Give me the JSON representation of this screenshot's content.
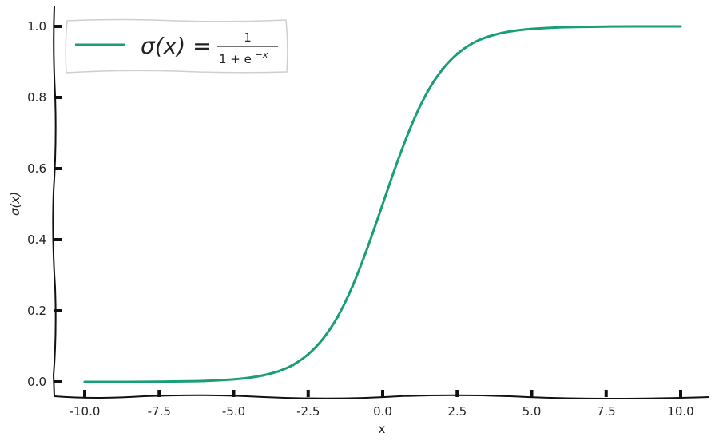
{
  "chart_data": {
    "type": "line",
    "title": "",
    "xlabel": "x",
    "ylabel": "σ(x)",
    "xlim": [
      -11.0,
      11.0
    ],
    "ylim": [
      -0.05,
      1.05
    ],
    "x_ticks": [
      -10.0,
      -7.5,
      -5.0,
      -2.5,
      0.0,
      2.5,
      5.0,
      7.5,
      10.0
    ],
    "x_tick_labels": [
      "-10.0",
      "-7.5",
      "-5.0",
      "-2.5",
      "0.0",
      "2.5",
      "5.0",
      "7.5",
      "10.0"
    ],
    "y_ticks": [
      0.0,
      0.2,
      0.4,
      0.6,
      0.8,
      1.0
    ],
    "y_tick_labels": [
      "0.0",
      "0.2",
      "0.4",
      "0.6",
      "0.8",
      "1.0"
    ],
    "grid": false,
    "legend_position": "top-left",
    "series": [
      {
        "name": "σ(x) = 1 / (1 + e^(−x))",
        "color": "#1a9e77",
        "x": [
          -10.0,
          -9.0,
          -8.0,
          -7.0,
          -6.0,
          -5.0,
          -4.5,
          -4.0,
          -3.5,
          -3.0,
          -2.5,
          -2.0,
          -1.5,
          -1.0,
          -0.5,
          0.0,
          0.5,
          1.0,
          1.5,
          2.0,
          2.5,
          3.0,
          3.5,
          4.0,
          4.5,
          5.0,
          6.0,
          7.0,
          8.0,
          9.0,
          10.0
        ],
        "values": [
          0.0,
          0.0,
          0.0,
          0.001,
          0.002,
          0.007,
          0.011,
          0.018,
          0.029,
          0.047,
          0.076,
          0.119,
          0.182,
          0.269,
          0.378,
          0.5,
          0.622,
          0.731,
          0.818,
          0.881,
          0.924,
          0.953,
          0.971,
          0.982,
          0.989,
          0.993,
          0.998,
          0.999,
          1.0,
          1.0,
          1.0
        ]
      }
    ]
  },
  "legend": {
    "lhs": "σ(x) =",
    "numerator": "1",
    "denominator_base": "1 + e",
    "denominator_exp": "−x"
  }
}
